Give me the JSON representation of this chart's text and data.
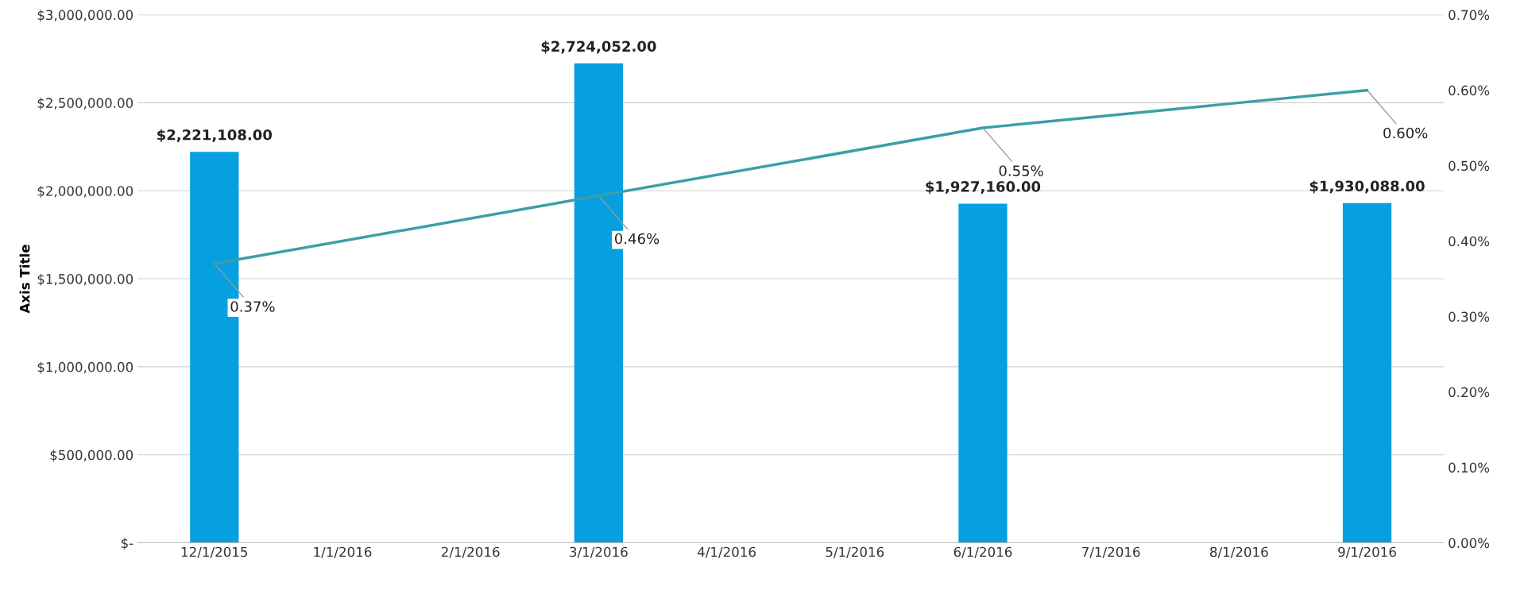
{
  "chart_data": {
    "type": "bar",
    "ylabel": "Axis Title",
    "categories": [
      "12/1/2015",
      "1/1/2016",
      "2/1/2016",
      "3/1/2016",
      "4/1/2016",
      "5/1/2016",
      "6/1/2016",
      "7/1/2016",
      "8/1/2016",
      "9/1/2016"
    ],
    "series": [
      {
        "color": "#06a0e0",
        "values": [
          2221108,
          null,
          null,
          2724052,
          null,
          null,
          1927160,
          null,
          null,
          1930088
        ],
        "value_labels": [
          "$2,221,108.00",
          null,
          null,
          "$2,724,052.00",
          null,
          null,
          "$1,927,160.00",
          null,
          null,
          "$1,930,088.00"
        ]
      },
      {
        "type": "line",
        "axis": "y2",
        "color": "#3a9fa8",
        "values": [
          0.37,
          null,
          null,
          0.46,
          null,
          null,
          0.55,
          null,
          null,
          0.6
        ],
        "value_labels": [
          "0.37%",
          null,
          null,
          "0.46%",
          null,
          null,
          "0.55%",
          null,
          null,
          "0.60%"
        ]
      }
    ],
    "ylim": [
      0,
      3000000
    ],
    "yticks": [
      {
        "value": 0,
        "label": "$-"
      },
      {
        "value": 500000,
        "label": "$500,000.00"
      },
      {
        "value": 1000000,
        "label": "$1,000,000.00"
      },
      {
        "value": 1500000,
        "label": "$1,500,000.00"
      },
      {
        "value": 2000000,
        "label": "$2,000,000.00"
      },
      {
        "value": 2500000,
        "label": "$2,500,000.00"
      },
      {
        "value": 3000000,
        "label": "$3,000,000.00"
      }
    ],
    "y2lim": [
      0,
      0.7
    ],
    "y2ticks": [
      {
        "value": 0,
        "label": "0.00%"
      },
      {
        "value": 0.1,
        "label": "0.10%"
      },
      {
        "value": 0.2,
        "label": "0.20%"
      },
      {
        "value": 0.3,
        "label": "0.30%"
      },
      {
        "value": 0.4,
        "label": "0.40%"
      },
      {
        "value": 0.5,
        "label": "0.50%"
      },
      {
        "value": 0.6,
        "label": "0.60%"
      },
      {
        "value": 0.7,
        "label": "0.70%"
      }
    ],
    "grid": "y",
    "legend": false
  }
}
